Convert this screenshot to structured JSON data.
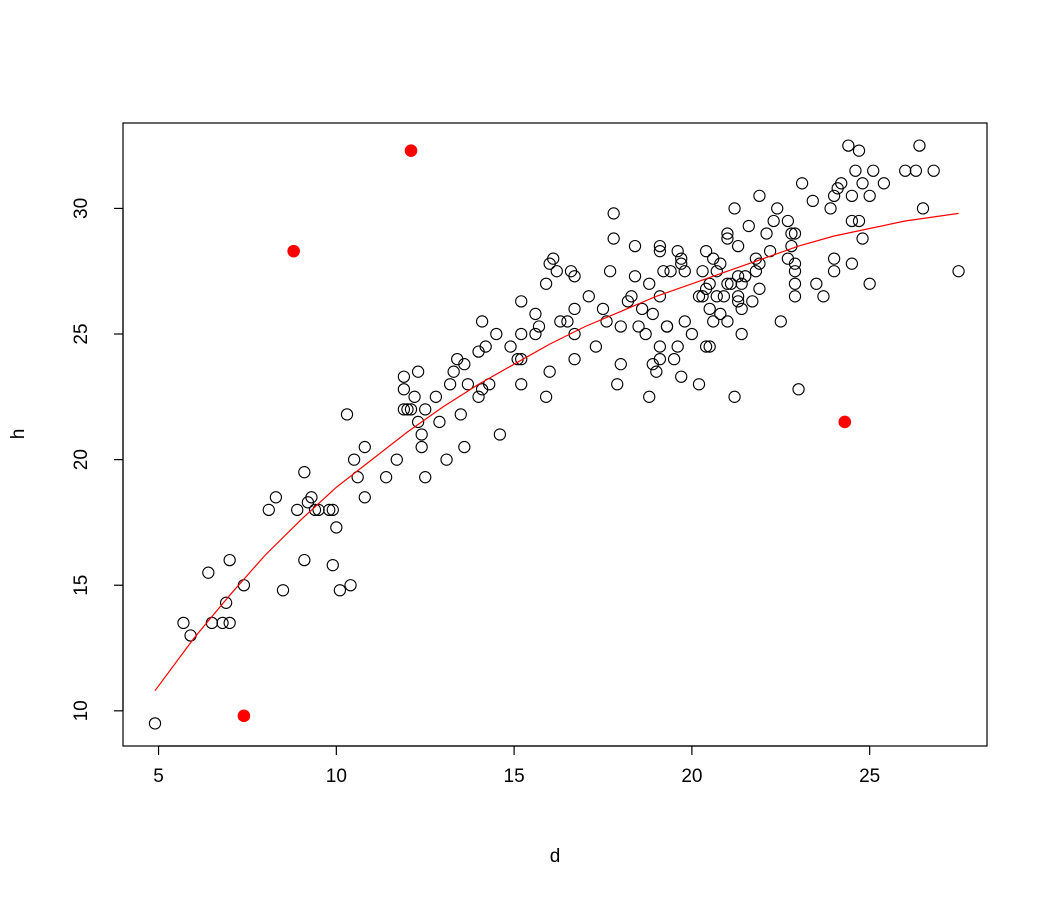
{
  "chart_data": {
    "type": "scatter",
    "title": "",
    "xlabel": "d",
    "ylabel": "h",
    "xlim": [
      4.0,
      28.3
    ],
    "ylim": [
      8.6,
      33.4
    ],
    "xticks": [
      5,
      10,
      15,
      20,
      25
    ],
    "yticks": [
      10,
      15,
      20,
      25,
      30
    ],
    "grid": false,
    "colors": {
      "points": "#000000",
      "highlight": "#ff0000",
      "curve": "#ff0000"
    },
    "series": [
      {
        "marker": "open-circle",
        "points": [
          [
            4.9,
            9.5
          ],
          [
            5.7,
            13.5
          ],
          [
            5.9,
            13.0
          ],
          [
            6.4,
            15.5
          ],
          [
            6.5,
            13.5
          ],
          [
            6.8,
            13.5
          ],
          [
            6.9,
            14.3
          ],
          [
            7.0,
            13.5
          ],
          [
            7.0,
            16.0
          ],
          [
            7.4,
            15.0
          ],
          [
            8.1,
            18.0
          ],
          [
            8.3,
            18.5
          ],
          [
            8.5,
            14.8
          ],
          [
            8.9,
            18.0
          ],
          [
            9.1,
            16.0
          ],
          [
            9.1,
            19.5
          ],
          [
            9.2,
            18.3
          ],
          [
            9.3,
            18.5
          ],
          [
            9.4,
            18.0
          ],
          [
            9.5,
            18.0
          ],
          [
            9.8,
            18.0
          ],
          [
            9.9,
            15.8
          ],
          [
            9.9,
            18.0
          ],
          [
            10.0,
            17.3
          ],
          [
            10.1,
            14.8
          ],
          [
            10.3,
            21.8
          ],
          [
            10.4,
            15.0
          ],
          [
            10.5,
            20.0
          ],
          [
            10.6,
            19.3
          ],
          [
            10.8,
            18.5
          ],
          [
            10.8,
            20.5
          ],
          [
            11.4,
            19.3
          ],
          [
            11.7,
            20.0
          ],
          [
            11.9,
            22.0
          ],
          [
            11.9,
            22.8
          ],
          [
            11.9,
            23.3
          ],
          [
            12.0,
            22.0
          ],
          [
            12.1,
            22.0
          ],
          [
            12.2,
            22.5
          ],
          [
            12.3,
            21.5
          ],
          [
            12.3,
            23.5
          ],
          [
            12.4,
            21.0
          ],
          [
            12.4,
            20.5
          ],
          [
            12.5,
            19.3
          ],
          [
            12.5,
            22.0
          ],
          [
            12.8,
            22.5
          ],
          [
            12.9,
            21.5
          ],
          [
            13.1,
            20.0
          ],
          [
            13.2,
            23.0
          ],
          [
            13.3,
            23.5
          ],
          [
            13.4,
            24.0
          ],
          [
            13.5,
            21.8
          ],
          [
            13.6,
            20.5
          ],
          [
            13.6,
            23.8
          ],
          [
            13.7,
            23.0
          ],
          [
            14.0,
            22.5
          ],
          [
            14.0,
            24.3
          ],
          [
            14.1,
            22.8
          ],
          [
            14.1,
            25.5
          ],
          [
            14.2,
            24.5
          ],
          [
            14.3,
            23.0
          ],
          [
            14.5,
            25.0
          ],
          [
            14.6,
            21.0
          ],
          [
            14.9,
            24.5
          ],
          [
            15.1,
            24.0
          ],
          [
            15.2,
            24.0
          ],
          [
            15.2,
            25.0
          ],
          [
            15.2,
            26.3
          ],
          [
            15.2,
            23.0
          ],
          [
            15.6,
            25.0
          ],
          [
            15.6,
            25.8
          ],
          [
            15.7,
            25.3
          ],
          [
            15.9,
            22.5
          ],
          [
            15.9,
            27.0
          ],
          [
            16.0,
            27.8
          ],
          [
            16.0,
            23.5
          ],
          [
            16.1,
            28.0
          ],
          [
            16.2,
            27.5
          ],
          [
            16.3,
            25.5
          ],
          [
            16.5,
            25.5
          ],
          [
            16.6,
            27.5
          ],
          [
            16.7,
            27.3
          ],
          [
            16.7,
            26.0
          ],
          [
            16.7,
            24.0
          ],
          [
            16.7,
            25.0
          ],
          [
            17.1,
            26.5
          ],
          [
            17.3,
            24.5
          ],
          [
            17.5,
            26.0
          ],
          [
            17.6,
            25.5
          ],
          [
            17.7,
            27.5
          ],
          [
            17.8,
            28.8
          ],
          [
            17.8,
            29.8
          ],
          [
            17.9,
            23.0
          ],
          [
            18.0,
            25.3
          ],
          [
            18.0,
            23.8
          ],
          [
            18.2,
            26.3
          ],
          [
            18.3,
            26.5
          ],
          [
            18.4,
            28.5
          ],
          [
            18.4,
            27.3
          ],
          [
            18.5,
            25.3
          ],
          [
            18.6,
            26.0
          ],
          [
            18.7,
            25.0
          ],
          [
            18.8,
            27.0
          ],
          [
            18.8,
            22.5
          ],
          [
            18.9,
            25.8
          ],
          [
            18.9,
            23.8
          ],
          [
            19.0,
            23.5
          ],
          [
            19.1,
            28.3
          ],
          [
            19.1,
            28.5
          ],
          [
            19.1,
            24.0
          ],
          [
            19.1,
            24.5
          ],
          [
            19.1,
            26.5
          ],
          [
            19.2,
            27.5
          ],
          [
            19.3,
            25.3
          ],
          [
            19.3,
            25.3
          ],
          [
            19.4,
            27.5
          ],
          [
            19.5,
            24.0
          ],
          [
            19.6,
            28.3
          ],
          [
            19.6,
            24.5
          ],
          [
            19.7,
            28.0
          ],
          [
            19.7,
            27.8
          ],
          [
            19.7,
            23.3
          ],
          [
            19.8,
            25.5
          ],
          [
            19.8,
            27.5
          ],
          [
            20.0,
            25.0
          ],
          [
            20.2,
            23.0
          ],
          [
            20.2,
            26.5
          ],
          [
            20.3,
            26.5
          ],
          [
            20.3,
            27.5
          ],
          [
            20.4,
            28.3
          ],
          [
            20.4,
            24.5
          ],
          [
            20.4,
            26.8
          ],
          [
            20.5,
            24.5
          ],
          [
            20.5,
            27.0
          ],
          [
            20.5,
            26.0
          ],
          [
            20.6,
            25.5
          ],
          [
            20.6,
            28.0
          ],
          [
            20.7,
            26.5
          ],
          [
            20.7,
            27.5
          ],
          [
            20.8,
            27.8
          ],
          [
            20.8,
            25.8
          ],
          [
            20.9,
            26.5
          ],
          [
            21.0,
            28.8
          ],
          [
            21.0,
            29.0
          ],
          [
            21.0,
            25.5
          ],
          [
            21.0,
            27.0
          ],
          [
            21.1,
            27.0
          ],
          [
            21.2,
            22.5
          ],
          [
            21.2,
            30.0
          ],
          [
            21.3,
            27.3
          ],
          [
            21.3,
            28.5
          ],
          [
            21.3,
            26.5
          ],
          [
            21.3,
            26.3
          ],
          [
            21.4,
            27.0
          ],
          [
            21.4,
            25.0
          ],
          [
            21.4,
            26.0
          ],
          [
            21.5,
            27.3
          ],
          [
            21.6,
            29.3
          ],
          [
            21.7,
            26.3
          ],
          [
            21.8,
            28.0
          ],
          [
            21.8,
            27.5
          ],
          [
            21.9,
            27.8
          ],
          [
            21.9,
            30.5
          ],
          [
            21.9,
            26.8
          ],
          [
            22.1,
            29.0
          ],
          [
            22.2,
            28.3
          ],
          [
            22.3,
            29.5
          ],
          [
            22.4,
            30.0
          ],
          [
            22.5,
            25.5
          ],
          [
            22.7,
            28.0
          ],
          [
            22.7,
            29.5
          ],
          [
            22.8,
            29.0
          ],
          [
            22.8,
            28.5
          ],
          [
            22.9,
            29.0
          ],
          [
            22.9,
            27.0
          ],
          [
            22.9,
            26.5
          ],
          [
            22.9,
            27.5
          ],
          [
            22.9,
            27.8
          ],
          [
            23.0,
            22.8
          ],
          [
            23.1,
            31.0
          ],
          [
            23.4,
            30.3
          ],
          [
            23.5,
            27.0
          ],
          [
            23.7,
            26.5
          ],
          [
            23.9,
            30.0
          ],
          [
            24.0,
            27.5
          ],
          [
            24.0,
            28.0
          ],
          [
            24.0,
            30.5
          ],
          [
            24.1,
            30.8
          ],
          [
            24.2,
            31.0
          ],
          [
            24.4,
            32.5
          ],
          [
            24.5,
            29.5
          ],
          [
            24.5,
            27.8
          ],
          [
            24.5,
            30.5
          ],
          [
            24.6,
            31.5
          ],
          [
            24.7,
            32.3
          ],
          [
            24.7,
            29.5
          ],
          [
            24.8,
            28.8
          ],
          [
            24.8,
            31.0
          ],
          [
            25.0,
            27.0
          ],
          [
            25.0,
            30.5
          ],
          [
            25.1,
            31.5
          ],
          [
            25.4,
            31.0
          ],
          [
            26.0,
            31.5
          ],
          [
            26.3,
            31.5
          ],
          [
            26.4,
            32.5
          ],
          [
            26.5,
            30.0
          ],
          [
            26.8,
            31.5
          ],
          [
            27.5,
            27.5
          ]
        ]
      },
      {
        "marker": "filled-circle",
        "points": [
          [
            7.4,
            9.8
          ],
          [
            8.8,
            28.3
          ],
          [
            12.1,
            32.3
          ],
          [
            24.3,
            21.5
          ]
        ]
      }
    ],
    "curve": {
      "points": [
        [
          4.9,
          10.8
        ],
        [
          6.0,
          12.9
        ],
        [
          7.0,
          14.6
        ],
        [
          8.0,
          16.2
        ],
        [
          9.0,
          17.6
        ],
        [
          10.0,
          18.9
        ],
        [
          11.0,
          20.0
        ],
        [
          12.0,
          21.1
        ],
        [
          13.0,
          22.1
        ],
        [
          14.0,
          23.0
        ],
        [
          15.0,
          23.8
        ],
        [
          16.0,
          24.6
        ],
        [
          17.0,
          25.3
        ],
        [
          18.0,
          25.9
        ],
        [
          19.0,
          26.5
        ],
        [
          20.0,
          27.0
        ],
        [
          21.0,
          27.5
        ],
        [
          22.0,
          28.0
        ],
        [
          23.0,
          28.5
        ],
        [
          24.0,
          28.9
        ],
        [
          25.0,
          29.2
        ],
        [
          26.0,
          29.5
        ],
        [
          27.5,
          29.8
        ]
      ]
    }
  }
}
